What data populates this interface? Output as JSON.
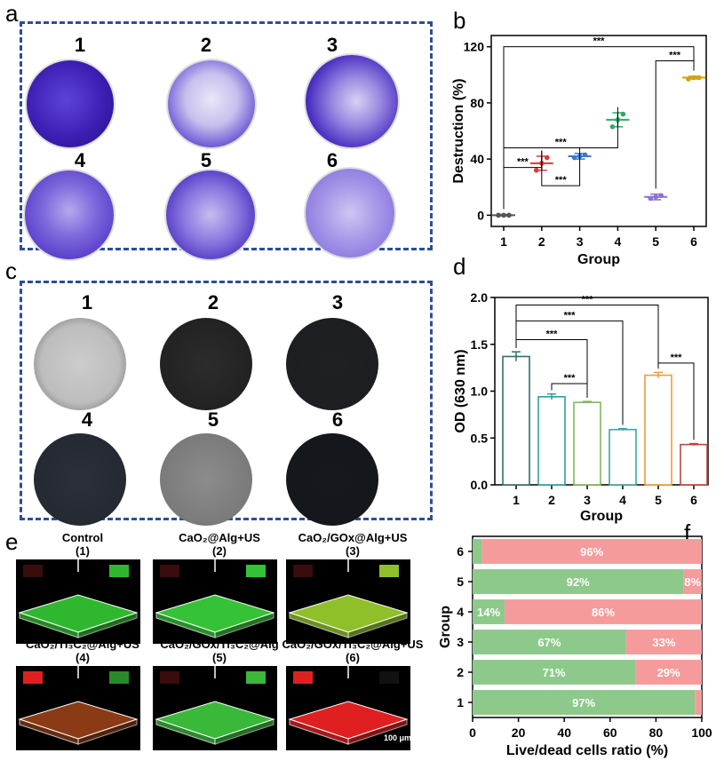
{
  "labels": {
    "a": "a",
    "b": "b",
    "c": "c",
    "d": "d",
    "e": "e",
    "f": "f"
  },
  "colors": {
    "box_border": "#2c4f97",
    "g1": "#555555",
    "g2": "#e0393b",
    "g3": "#3b7ad0",
    "g4": "#2faa6a",
    "g5": "#8e6fd6",
    "g6": "#d4a312",
    "d1": "#2f6f6f",
    "d2": "#2f9f9f",
    "d3": "#80b855",
    "d4": "#3aa6a6",
    "d5": "#f29b3a",
    "d6": "#c0453a",
    "live": "#8cc98a",
    "dead": "#f59b9b"
  },
  "panel_a": {
    "numbers": [
      "1",
      "2",
      "3",
      "4",
      "5",
      "6"
    ],
    "shades": [
      "#2a1aa8",
      "#5a4ad0",
      "#4130c2",
      "#6b55d8",
      "#4a36c4",
      "#8e7de2"
    ]
  },
  "panel_c": {
    "numbers": [
      "1",
      "2",
      "3",
      "4",
      "5",
      "6"
    ],
    "shades": [
      "#c8c8c8",
      "#2a2a2a",
      "#1e1e1e",
      "#2c3038",
      "#9a9a9a",
      "#15181c"
    ]
  },
  "panel_e": {
    "titles": [
      {
        "line1": "Control",
        "line2": "(1)"
      },
      {
        "line1": "CaO₂@Alg+US",
        "line2": "(2)"
      },
      {
        "line1": "CaO₂/GOx@Alg+US",
        "line2": "(3)"
      },
      {
        "line1": "CaO₂/Ti₃C₂@Alg+US",
        "line2": "(4)"
      },
      {
        "line1": "CaO₂/GOx/Ti₃C₂@Alg",
        "line2": "(5)"
      },
      {
        "line1": "CaO₂/GOx/Ti₃C₂@Alg+US",
        "line2": "(6)"
      }
    ],
    "scale_bar": "100 μm",
    "tile_colors": [
      "#2fb82f",
      "#36c236",
      "#8fc02a",
      "#8a3a14",
      "#3ab83a",
      "#e02020"
    ]
  },
  "chart_data": [
    {
      "type": "scatter",
      "panel": "b",
      "xlabel": "Group",
      "ylabel": "Destruction (%)",
      "categories": [
        "1",
        "2",
        "3",
        "4",
        "5",
        "6"
      ],
      "yticks": [
        "0",
        "40",
        "80",
        "120"
      ],
      "ylim": [
        -8,
        128
      ],
      "means": [
        0,
        37,
        42,
        68,
        13,
        98
      ],
      "errors": [
        0.5,
        5,
        2,
        5,
        2,
        1
      ],
      "points": [
        [
          0,
          0,
          0
        ],
        [
          32,
          37,
          41
        ],
        [
          41,
          42,
          43
        ],
        [
          63,
          68,
          72
        ],
        [
          12,
          13,
          14
        ],
        [
          97,
          98,
          98
        ]
      ],
      "significance": [
        {
          "from": "1",
          "to": "2",
          "label": "***"
        },
        {
          "from": "2",
          "to": "3",
          "label": "***"
        },
        {
          "from": "1",
          "to": "4",
          "label": "***"
        },
        {
          "from": "5",
          "to": "6",
          "label": "***"
        },
        {
          "from": "1",
          "to": "6",
          "label": "***"
        }
      ]
    },
    {
      "type": "bar",
      "panel": "d",
      "xlabel": "Group",
      "ylabel": "OD (630 nm)",
      "categories": [
        "1",
        "2",
        "3",
        "4",
        "5",
        "6"
      ],
      "yticks": [
        "0.0",
        "0.5",
        "1.0",
        "1.5",
        "2.0"
      ],
      "ylim": [
        0,
        2.0
      ],
      "values": [
        1.37,
        0.94,
        0.88,
        0.59,
        1.17,
        0.43
      ],
      "errors": [
        0.05,
        0.03,
        0.01,
        0.01,
        0.03,
        0.01
      ],
      "significance": [
        {
          "from": "2",
          "to": "3",
          "label": "***"
        },
        {
          "from": "1",
          "to": "3",
          "label": "***"
        },
        {
          "from": "1",
          "to": "4",
          "label": "***"
        },
        {
          "from": "5",
          "to": "6",
          "label": "***"
        },
        {
          "from": "1",
          "to": "5",
          "label": "***"
        }
      ]
    },
    {
      "type": "bar",
      "panel": "f",
      "orientation": "horizontal-stacked",
      "xlabel": "Live/dead cells ratio (%)",
      "ylabel": "Group",
      "categories": [
        "1",
        "2",
        "3",
        "4",
        "5",
        "6"
      ],
      "xticks": [
        "0",
        "20",
        "40",
        "60",
        "80",
        "100"
      ],
      "xlim": [
        0,
        100
      ],
      "series": [
        {
          "name": "live",
          "values": [
            97,
            71,
            67,
            14,
            92,
            4
          ],
          "labels": [
            "97%",
            "71%",
            "67%",
            "14%",
            "92%",
            ""
          ]
        },
        {
          "name": "dead",
          "values": [
            3,
            29,
            33,
            86,
            8,
            96
          ],
          "labels": [
            "",
            "29%",
            "33%",
            "86%",
            "8%",
            "96%"
          ]
        }
      ]
    }
  ]
}
